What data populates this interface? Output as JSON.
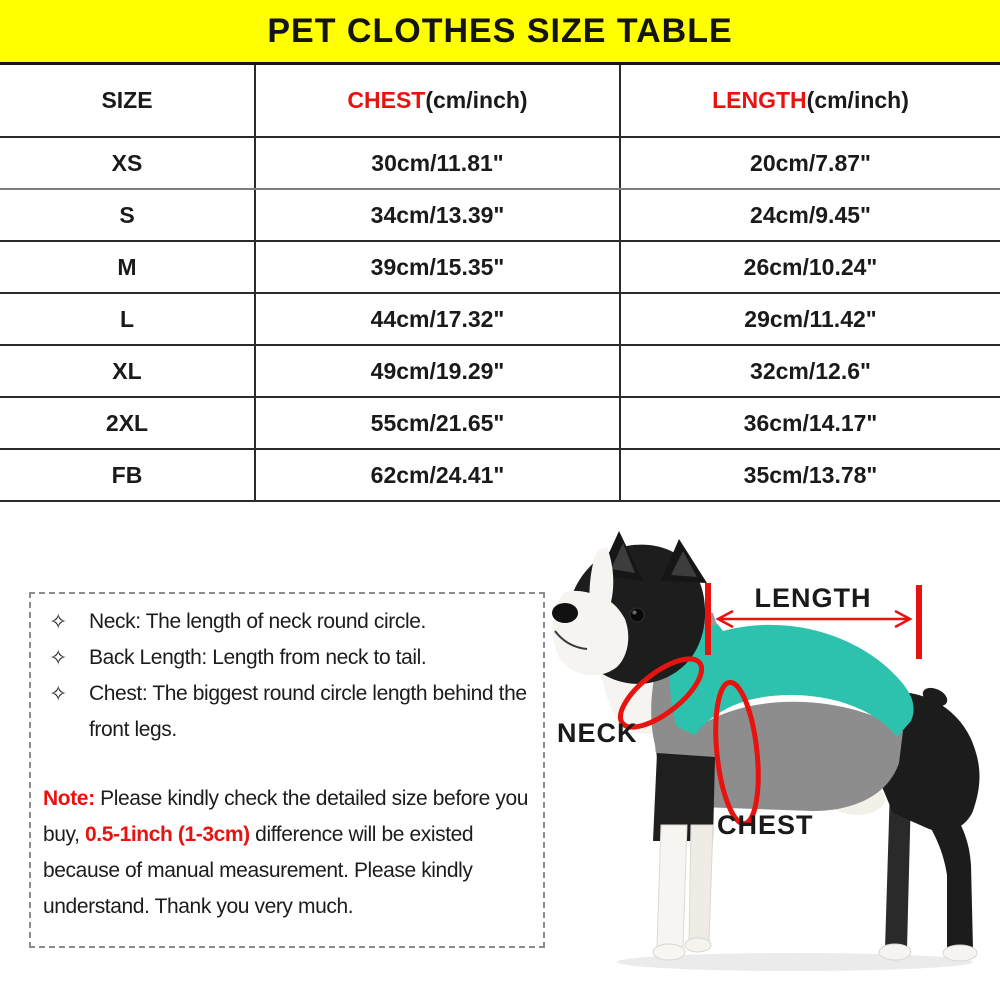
{
  "title": "PET CLOTHES SIZE TABLE",
  "colors": {
    "banner_bg": "#ffff00",
    "accent_red": "#e8120f",
    "vest_teal": "#2cc2ad",
    "vest_gray": "#8d8d8d"
  },
  "table": {
    "size_header": "SIZE",
    "chest_header": {
      "name": "CHEST",
      "unit": "(cm/inch)"
    },
    "length_header": {
      "name": "LENGTH",
      "unit": "(cm/inch)"
    },
    "rows": [
      {
        "size": "XS",
        "chest": "30cm/11.81\"",
        "length": "20cm/7.87\""
      },
      {
        "size": "S",
        "chest": "34cm/13.39\"",
        "length": "24cm/9.45\""
      },
      {
        "size": "M",
        "chest": "39cm/15.35\"",
        "length": "26cm/10.24\""
      },
      {
        "size": "L",
        "chest": "44cm/17.32\"",
        "length": "29cm/11.42\""
      },
      {
        "size": "XL",
        "chest": "49cm/19.29\"",
        "length": "32cm/12.6\""
      },
      {
        "size": "2XL",
        "chest": "55cm/21.65\"",
        "length": "36cm/14.17\""
      },
      {
        "size": "FB",
        "chest": "62cm/24.41\"",
        "length": "35cm/13.78\""
      }
    ]
  },
  "notes_box": {
    "bullet_icon": "✧",
    "bullets": [
      "Neck: The length of neck round circle.",
      "Back Length: Length from neck to tail.",
      "Chest: The biggest round circle length behind the front legs."
    ],
    "note_segments": [
      {
        "text": "Note:",
        "style": "red"
      },
      {
        "text": " Please kindly check the detailed size before you buy, ",
        "style": "normal"
      },
      {
        "text": "0.5-1inch (1-3cm)",
        "style": "red"
      },
      {
        "text": " difference will be existed because of manual measurement. Please kindly understand. Thank you very much.",
        "style": "normal"
      }
    ]
  },
  "diagram": {
    "length_label": "LENGTH",
    "neck_label": "NECK",
    "chest_label": "CHEST"
  }
}
